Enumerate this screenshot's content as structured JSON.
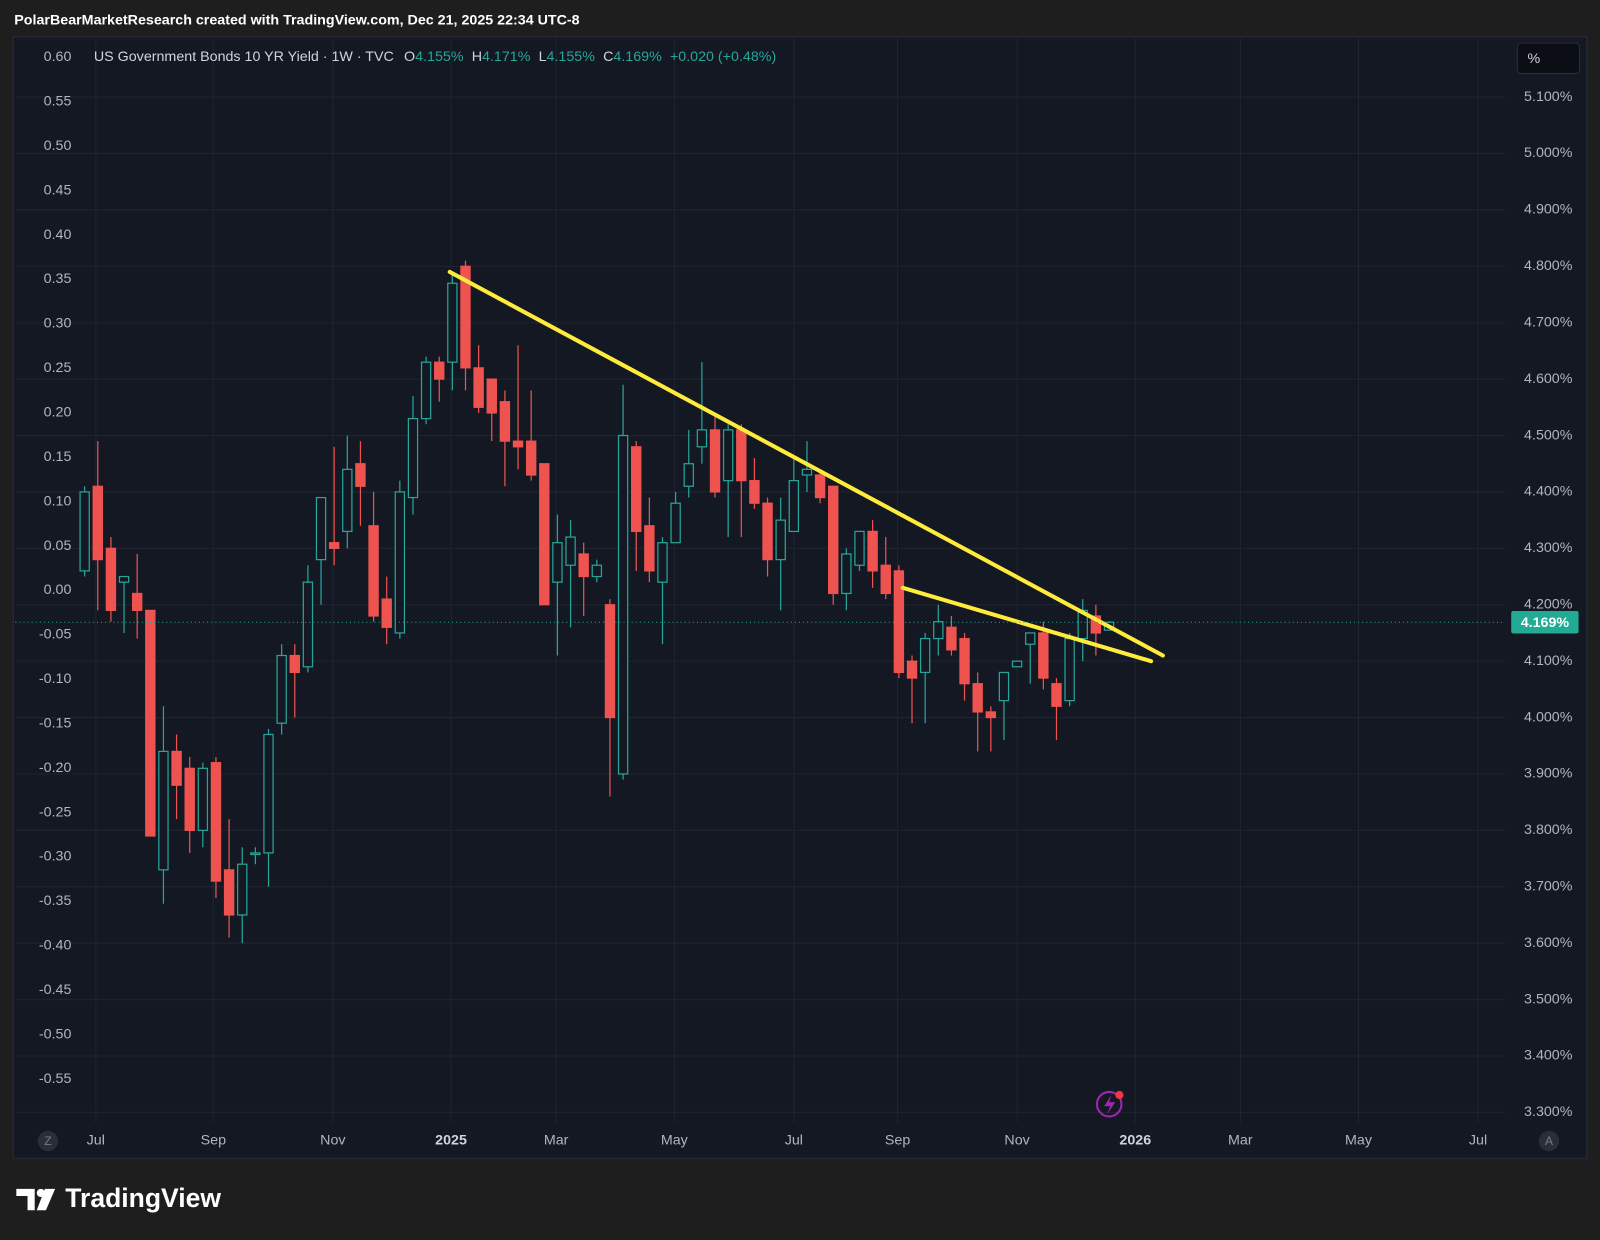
{
  "watermark": "PolarBearMarketResearch created with TradingView.com, Dec 21, 2025 22:34 UTC-8",
  "brand": "TradingView",
  "scale_button": "%",
  "z_button": "Z",
  "a_button": "A",
  "chart_data": {
    "type": "candlestick",
    "title": "US Government Bonds 10 YR Yield · 1W · TVC",
    "quote": [
      {
        "key": "O",
        "value": "4.155%"
      },
      {
        "key": "H",
        "value": "4.171%"
      },
      {
        "key": "L",
        "value": "4.155%"
      },
      {
        "key": "C",
        "value": "4.169%"
      }
    ],
    "change": "+0.020 (+0.48%)",
    "up_color": "#26a69a",
    "down_color": "#ef5350",
    "grid": true,
    "open": [
      4.26,
      4.41,
      4.3,
      4.24,
      4.22,
      4.19,
      3.73,
      3.94,
      3.91,
      3.8,
      3.92,
      3.73,
      3.65,
      3.76,
      3.76,
      3.99,
      4.11,
      4.09,
      4.28,
      4.31,
      4.33,
      4.45,
      4.34,
      4.21,
      4.15,
      4.39,
      4.53,
      4.63,
      4.63,
      4.8,
      4.62,
      4.6,
      4.56,
      4.49,
      4.49,
      4.45,
      4.24,
      4.27,
      4.29,
      4.25,
      4.2,
      3.9,
      4.48,
      4.34,
      4.24,
      4.31,
      4.41,
      4.48,
      4.51,
      4.42,
      4.51,
      4.42,
      4.38,
      4.28,
      4.33,
      4.43,
      4.43,
      4.41,
      4.22,
      4.27,
      4.33,
      4.27,
      4.26,
      4.1,
      4.08,
      4.14,
      4.16,
      4.14,
      4.06,
      4.01,
      4.03,
      4.09,
      4.13,
      4.15,
      4.06,
      4.03,
      4.14,
      4.18,
      4.155
    ],
    "high": [
      4.41,
      4.49,
      4.32,
      4.25,
      4.29,
      4.19,
      4.02,
      3.97,
      3.93,
      3.92,
      3.93,
      3.82,
      3.77,
      3.77,
      3.98,
      4.13,
      4.13,
      4.27,
      4.39,
      4.48,
      4.5,
      4.49,
      4.4,
      4.25,
      4.42,
      4.57,
      4.64,
      4.64,
      4.79,
      4.81,
      4.66,
      4.6,
      4.58,
      4.66,
      4.58,
      4.45,
      4.36,
      4.35,
      4.31,
      4.28,
      4.21,
      4.59,
      4.49,
      4.39,
      4.32,
      4.4,
      4.51,
      4.63,
      4.54,
      4.52,
      4.52,
      4.46,
      4.39,
      4.39,
      4.46,
      4.49,
      4.44,
      4.41,
      4.3,
      4.33,
      4.35,
      4.32,
      4.27,
      4.11,
      4.15,
      4.2,
      4.18,
      4.15,
      4.08,
      4.02,
      4.08,
      4.1,
      4.15,
      4.17,
      4.07,
      4.15,
      4.21,
      4.2,
      4.171
    ],
    "low": [
      4.25,
      4.19,
      4.17,
      4.15,
      4.14,
      3.79,
      3.67,
      3.82,
      3.76,
      3.77,
      3.68,
      3.61,
      3.6,
      3.74,
      3.7,
      3.97,
      4.0,
      4.08,
      4.2,
      4.27,
      4.3,
      4.34,
      4.17,
      4.13,
      4.14,
      4.36,
      4.52,
      4.56,
      4.58,
      4.58,
      4.54,
      4.49,
      4.41,
      4.44,
      4.42,
      4.2,
      4.11,
      4.16,
      4.18,
      4.24,
      3.86,
      3.89,
      4.26,
      4.24,
      4.13,
      4.31,
      4.39,
      4.45,
      4.39,
      4.32,
      4.32,
      4.37,
      4.25,
      4.19,
      4.33,
      4.4,
      4.38,
      4.2,
      4.19,
      4.26,
      4.23,
      4.21,
      4.07,
      3.99,
      3.99,
      4.11,
      4.11,
      4.03,
      3.94,
      3.94,
      3.96,
      4.09,
      4.06,
      4.05,
      3.96,
      4.02,
      4.1,
      4.11,
      4.155
    ],
    "close": [
      4.4,
      4.28,
      4.19,
      4.25,
      4.19,
      3.79,
      3.94,
      3.88,
      3.8,
      3.91,
      3.71,
      3.65,
      3.74,
      3.76,
      3.97,
      4.11,
      4.08,
      4.24,
      4.39,
      4.3,
      4.44,
      4.41,
      4.18,
      4.16,
      4.4,
      4.53,
      4.63,
      4.6,
      4.77,
      4.62,
      4.55,
      4.54,
      4.49,
      4.48,
      4.43,
      4.2,
      4.31,
      4.32,
      4.25,
      4.27,
      4.0,
      4.5,
      4.33,
      4.26,
      4.31,
      4.38,
      4.45,
      4.51,
      4.4,
      4.51,
      4.42,
      4.38,
      4.28,
      4.35,
      4.42,
      4.44,
      4.39,
      4.22,
      4.29,
      4.33,
      4.26,
      4.22,
      4.08,
      4.07,
      4.14,
      4.17,
      4.12,
      4.06,
      4.01,
      4.0,
      4.08,
      4.1,
      4.15,
      4.07,
      4.02,
      4.14,
      4.19,
      4.15,
      4.169
    ],
    "xlim": [
      -5.28,
      108.16
    ],
    "xticks": [
      {
        "value": 0.85,
        "label": "Jul"
      },
      {
        "value": 9.8,
        "label": "Sep"
      },
      {
        "value": 18.9,
        "label": "Nov"
      },
      {
        "value": 27.9,
        "label": "2025"
      },
      {
        "value": 35.9,
        "label": "Mar"
      },
      {
        "value": 44.9,
        "label": "May"
      },
      {
        "value": 54.0,
        "label": "Jul"
      },
      {
        "value": 61.9,
        "label": "Sep"
      },
      {
        "value": 71.0,
        "label": "Nov"
      },
      {
        "value": 80.0,
        "label": "2026"
      },
      {
        "value": 88.0,
        "label": "Mar"
      },
      {
        "value": 97.0,
        "label": "May"
      },
      {
        "value": 106.1,
        "label": "Jul"
      }
    ],
    "ylim": [
      3.282,
      5.205
    ],
    "yticks": [
      {
        "value": 3.3,
        "label": "3.300%"
      },
      {
        "value": 3.4,
        "label": "3.400%"
      },
      {
        "value": 3.5,
        "label": "3.500%"
      },
      {
        "value": 3.6,
        "label": "3.600%"
      },
      {
        "value": 3.7,
        "label": "3.700%"
      },
      {
        "value": 3.8,
        "label": "3.800%"
      },
      {
        "value": 3.9,
        "label": "3.900%"
      },
      {
        "value": 4.0,
        "label": "4.000%"
      },
      {
        "value": 4.1,
        "label": "4.100%"
      },
      {
        "value": 4.2,
        "label": "4.200%"
      },
      {
        "value": 4.3,
        "label": "4.300%"
      },
      {
        "value": 4.4,
        "label": "4.400%"
      },
      {
        "value": 4.5,
        "label": "4.500%"
      },
      {
        "value": 4.6,
        "label": "4.600%"
      },
      {
        "value": 4.7,
        "label": "4.700%"
      },
      {
        "value": 4.8,
        "label": "4.800%"
      },
      {
        "value": 4.9,
        "label": "4.900%"
      },
      {
        "value": 5.0,
        "label": "5.000%"
      },
      {
        "value": 5.1,
        "label": "5.100%"
      }
    ],
    "y2lim": [
      -0.599,
      0.622
    ],
    "y2ticks": [
      {
        "value": -0.55,
        "label": "-0.55"
      },
      {
        "value": -0.5,
        "label": "-0.50"
      },
      {
        "value": -0.45,
        "label": "-0.45"
      },
      {
        "value": -0.4,
        "label": "-0.40"
      },
      {
        "value": -0.35,
        "label": "-0.35"
      },
      {
        "value": -0.3,
        "label": "-0.30"
      },
      {
        "value": -0.25,
        "label": "-0.25"
      },
      {
        "value": -0.2,
        "label": "-0.20"
      },
      {
        "value": -0.15,
        "label": "-0.15"
      },
      {
        "value": -0.1,
        "label": "-0.10"
      },
      {
        "value": -0.05,
        "label": "-0.05"
      },
      {
        "value": 0,
        "label": "0.00"
      },
      {
        "value": 0.05,
        "label": "0.05"
      },
      {
        "value": 0.1,
        "label": "0.10"
      },
      {
        "value": 0.15,
        "label": "0.15"
      },
      {
        "value": 0.2,
        "label": "0.20"
      },
      {
        "value": 0.25,
        "label": "0.25"
      },
      {
        "value": 0.3,
        "label": "0.30"
      },
      {
        "value": 0.35,
        "label": "0.35"
      },
      {
        "value": 0.4,
        "label": "0.40"
      },
      {
        "value": 0.45,
        "label": "0.45"
      },
      {
        "value": 0.5,
        "label": "0.50"
      },
      {
        "value": 0.55,
        "label": "0.55"
      },
      {
        "value": 0.6,
        "label": "0.60"
      }
    ],
    "last_price": {
      "value": 4.169,
      "label": "4.169%",
      "color": "#22ab94"
    },
    "trendlines": [
      {
        "color": "#ffeb3b",
        "x": [
          27.8,
          82.1
        ],
        "y": [
          4.79,
          4.11
        ]
      },
      {
        "color": "#ffeb3b",
        "x": [
          62.3,
          81.2
        ],
        "y": [
          4.23,
          4.1
        ]
      }
    ]
  }
}
